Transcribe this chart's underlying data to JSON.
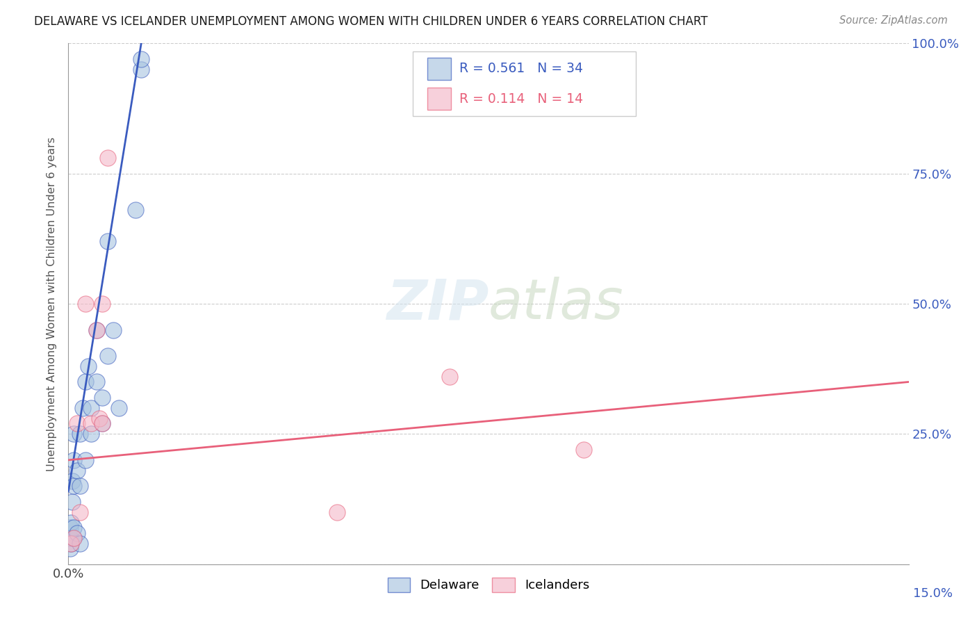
{
  "title": "DELAWARE VS ICELANDER UNEMPLOYMENT AMONG WOMEN WITH CHILDREN UNDER 6 YEARS CORRELATION CHART",
  "source": "Source: ZipAtlas.com",
  "ylabel": "Unemployment Among Women with Children Under 6 years",
  "xlim": [
    0.0,
    0.15
  ],
  "ylim": [
    0.0,
    1.0
  ],
  "delaware_color": "#a8c4e0",
  "icelander_color": "#f4b8c8",
  "delaware_line_color": "#3a5bbf",
  "icelander_line_color": "#e8607a",
  "R_delaware": 0.561,
  "N_delaware": 34,
  "R_icelander": 0.114,
  "N_icelander": 14,
  "delaware_x": [
    0.0003,
    0.0003,
    0.0003,
    0.0005,
    0.0005,
    0.0007,
    0.0007,
    0.001,
    0.001,
    0.001,
    0.001,
    0.001,
    0.0015,
    0.0015,
    0.002,
    0.002,
    0.002,
    0.0025,
    0.003,
    0.003,
    0.0035,
    0.004,
    0.004,
    0.005,
    0.005,
    0.006,
    0.006,
    0.007,
    0.007,
    0.008,
    0.009,
    0.012,
    0.013,
    0.013
  ],
  "delaware_y": [
    0.03,
    0.05,
    0.07,
    0.04,
    0.08,
    0.12,
    0.16,
    0.05,
    0.07,
    0.15,
    0.2,
    0.25,
    0.06,
    0.18,
    0.04,
    0.15,
    0.25,
    0.3,
    0.2,
    0.35,
    0.38,
    0.25,
    0.3,
    0.45,
    0.35,
    0.27,
    0.32,
    0.4,
    0.62,
    0.45,
    0.3,
    0.68,
    0.95,
    0.97
  ],
  "icelander_x": [
    0.0005,
    0.001,
    0.0015,
    0.002,
    0.003,
    0.004,
    0.005,
    0.0055,
    0.006,
    0.006,
    0.007,
    0.048,
    0.068,
    0.092
  ],
  "icelander_y": [
    0.04,
    0.05,
    0.27,
    0.1,
    0.5,
    0.27,
    0.45,
    0.28,
    0.27,
    0.5,
    0.78,
    0.1,
    0.36,
    0.22
  ],
  "blue_line_x": [
    0.0,
    0.013
  ],
  "blue_line_y": [
    0.14,
    1.0
  ],
  "pink_line_x": [
    0.0,
    0.15
  ],
  "pink_line_y": [
    0.2,
    0.35
  ],
  "background_color": "#ffffff",
  "grid_color": "#cccccc"
}
